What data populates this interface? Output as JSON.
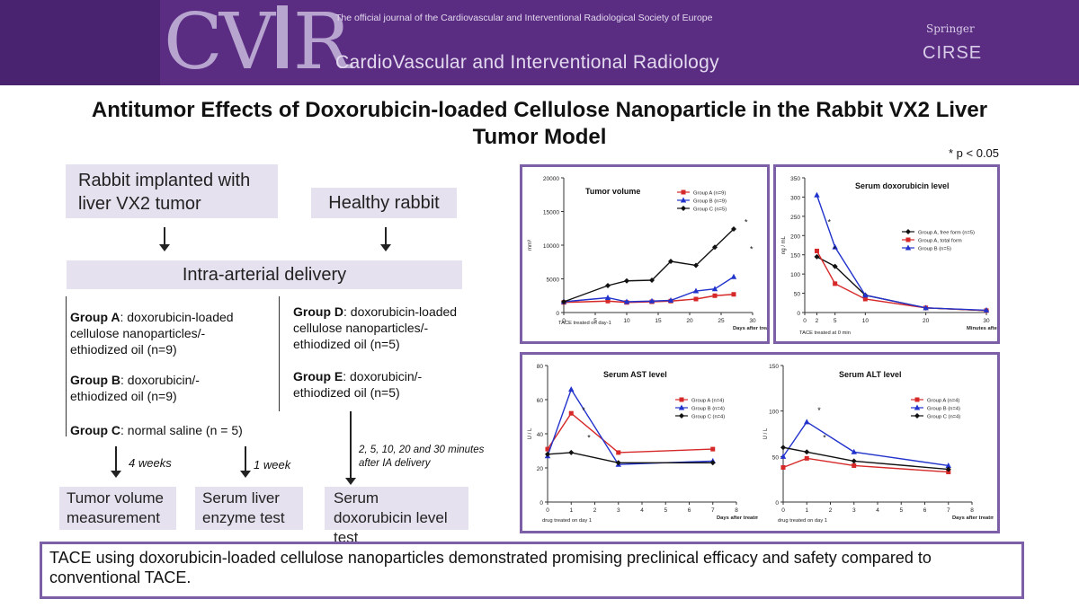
{
  "header": {
    "logo": "CVIR",
    "tagline": "The official journal of the  Cardiovascular and Interventional Radiological Society of Europe",
    "journal_name": "CardioVascular and Interventional Radiology",
    "publisher": "Springer",
    "society": "CIRSE"
  },
  "title": "Antitumor Effects of Doxorubicin-loaded Cellulose Nanoparticle in the Rabbit VX2 Liver Tumor Model",
  "significance_note": "* p < 0.05",
  "flow": {
    "box_tumor": "Rabbit implanted with liver VX2 tumor",
    "box_healthy": "Healthy rabbit",
    "box_delivery": "Intra-arterial delivery",
    "groups": [
      {
        "name": "Group A",
        "desc": ": doxorubicin-loaded cellulose nanoparticles/-ethiodized oil (n=9)"
      },
      {
        "name": "Group B",
        "desc": ": doxorubicin/-ethiodized oil (n=9)"
      },
      {
        "name": "Group C",
        "desc": ": normal saline (n = 5)"
      },
      {
        "name": "Group D",
        "desc": ": doxorubicin-loaded cellulose nanoparticles/-ethiodized oil (n=5)"
      },
      {
        "name": "Group E",
        "desc": ": doxorubicin/-ethiodized oil (n=5)"
      }
    ],
    "time_labels": [
      "4 weeks",
      "1 week",
      "2, 5, 10, 20 and 30 minutes after IA delivery"
    ],
    "outcomes": [
      "Tumor volume measurement",
      "Serum liver enzyme test",
      "Serum doxorubicin level test"
    ]
  },
  "chart_data": [
    {
      "type": "line",
      "title": "Tumor volume",
      "ylabel": "mm³",
      "xlabel": "Days after treatment",
      "x_note": "TACE treated on day-1",
      "xlim": [
        0,
        30
      ],
      "ylim": [
        0,
        20000
      ],
      "xticks": [
        0,
        5,
        10,
        15,
        20,
        25,
        30
      ],
      "yticks": [
        0,
        5000,
        10000,
        15000,
        20000
      ],
      "x": [
        0,
        7,
        10,
        14,
        17,
        21,
        24,
        27
      ],
      "series": [
        {
          "name": "Group A (n=9)",
          "color": "#d62828",
          "marker": "square",
          "values": [
            1500,
            1700,
            1500,
            1600,
            1700,
            2000,
            2500,
            2700
          ]
        },
        {
          "name": "Group B (n=9)",
          "color": "#2233cc",
          "marker": "triangle",
          "values": [
            1600,
            2200,
            1600,
            1700,
            1800,
            3200,
            3500,
            5300
          ]
        },
        {
          "name": "Group C (n=5)",
          "color": "#111111",
          "marker": "diamond",
          "values": [
            1600,
            4000,
            4700,
            4800,
            7600,
            7000,
            9700,
            12400
          ]
        }
      ],
      "annotations": [
        "*",
        "*"
      ]
    },
    {
      "type": "line",
      "title": "Serum doxorubicin level",
      "ylabel": "ng / mL",
      "xlabel": "Minutes after treatment",
      "x_note": "TACE treated at 0 min",
      "xlim": [
        0,
        30
      ],
      "ylim": [
        0,
        350
      ],
      "xticks": [
        0,
        2,
        5,
        10,
        20,
        30
      ],
      "yticks": [
        0,
        50,
        100,
        150,
        200,
        250,
        300,
        350
      ],
      "x": [
        2,
        5,
        10,
        20,
        30
      ],
      "series": [
        {
          "name": "Group A, free form (n=5)",
          "color": "#111111",
          "marker": "diamond",
          "values": [
            145,
            120,
            45,
            12,
            5
          ]
        },
        {
          "name": "Group A, total form",
          "color": "#d62828",
          "marker": "square",
          "values": [
            160,
            75,
            35,
            12,
            5
          ]
        },
        {
          "name": "Group B (n=5)",
          "color": "#2233cc",
          "marker": "triangle",
          "values": [
            305,
            170,
            45,
            12,
            6
          ]
        }
      ],
      "annotations": [
        "*",
        "*"
      ]
    },
    {
      "type": "line",
      "title": "Serum AST level",
      "ylabel": "U / L",
      "xlabel": "Days after treatment",
      "x_note": "drug treated on day 1",
      "xlim": [
        0,
        8
      ],
      "ylim": [
        0,
        80
      ],
      "xticks": [
        0,
        1,
        2,
        3,
        4,
        5,
        6,
        7,
        8
      ],
      "yticks": [
        0,
        20,
        40,
        60,
        80
      ],
      "x": [
        0,
        1,
        3,
        7
      ],
      "series": [
        {
          "name": "Group A (n=4)",
          "color": "#d62828",
          "marker": "square",
          "values": [
            31,
            52,
            29,
            31
          ]
        },
        {
          "name": "Group B (n=4)",
          "color": "#2233cc",
          "marker": "triangle",
          "values": [
            27,
            66,
            22,
            24
          ]
        },
        {
          "name": "Group C (n=4)",
          "color": "#111111",
          "marker": "diamond",
          "values": [
            28,
            29,
            23,
            23
          ]
        }
      ],
      "annotations": [
        "*",
        "*"
      ]
    },
    {
      "type": "line",
      "title": "Serum ALT level",
      "ylabel": "U / L",
      "xlabel": "Days after treatment",
      "x_note": "drug treated on day 1",
      "xlim": [
        0,
        8
      ],
      "ylim": [
        0,
        150
      ],
      "xticks": [
        0,
        1,
        2,
        3,
        4,
        5,
        6,
        7,
        8
      ],
      "yticks": [
        0,
        50,
        100,
        150
      ],
      "x": [
        0,
        1,
        3,
        7
      ],
      "series": [
        {
          "name": "Group A (n=4)",
          "color": "#d62828",
          "marker": "square",
          "values": [
            38,
            48,
            40,
            33
          ]
        },
        {
          "name": "Group B (n=4)",
          "color": "#2233cc",
          "marker": "triangle",
          "values": [
            50,
            88,
            55,
            40
          ]
        },
        {
          "name": "Group C (n=4)",
          "color": "#111111",
          "marker": "diamond",
          "values": [
            60,
            55,
            45,
            36
          ]
        }
      ],
      "annotations": [
        "*",
        "*"
      ]
    }
  ],
  "conclusion": "TACE using doxorubicin-loaded cellulose nanoparticles demonstrated promising preclinical efficacy and safety compared to conventional TACE."
}
